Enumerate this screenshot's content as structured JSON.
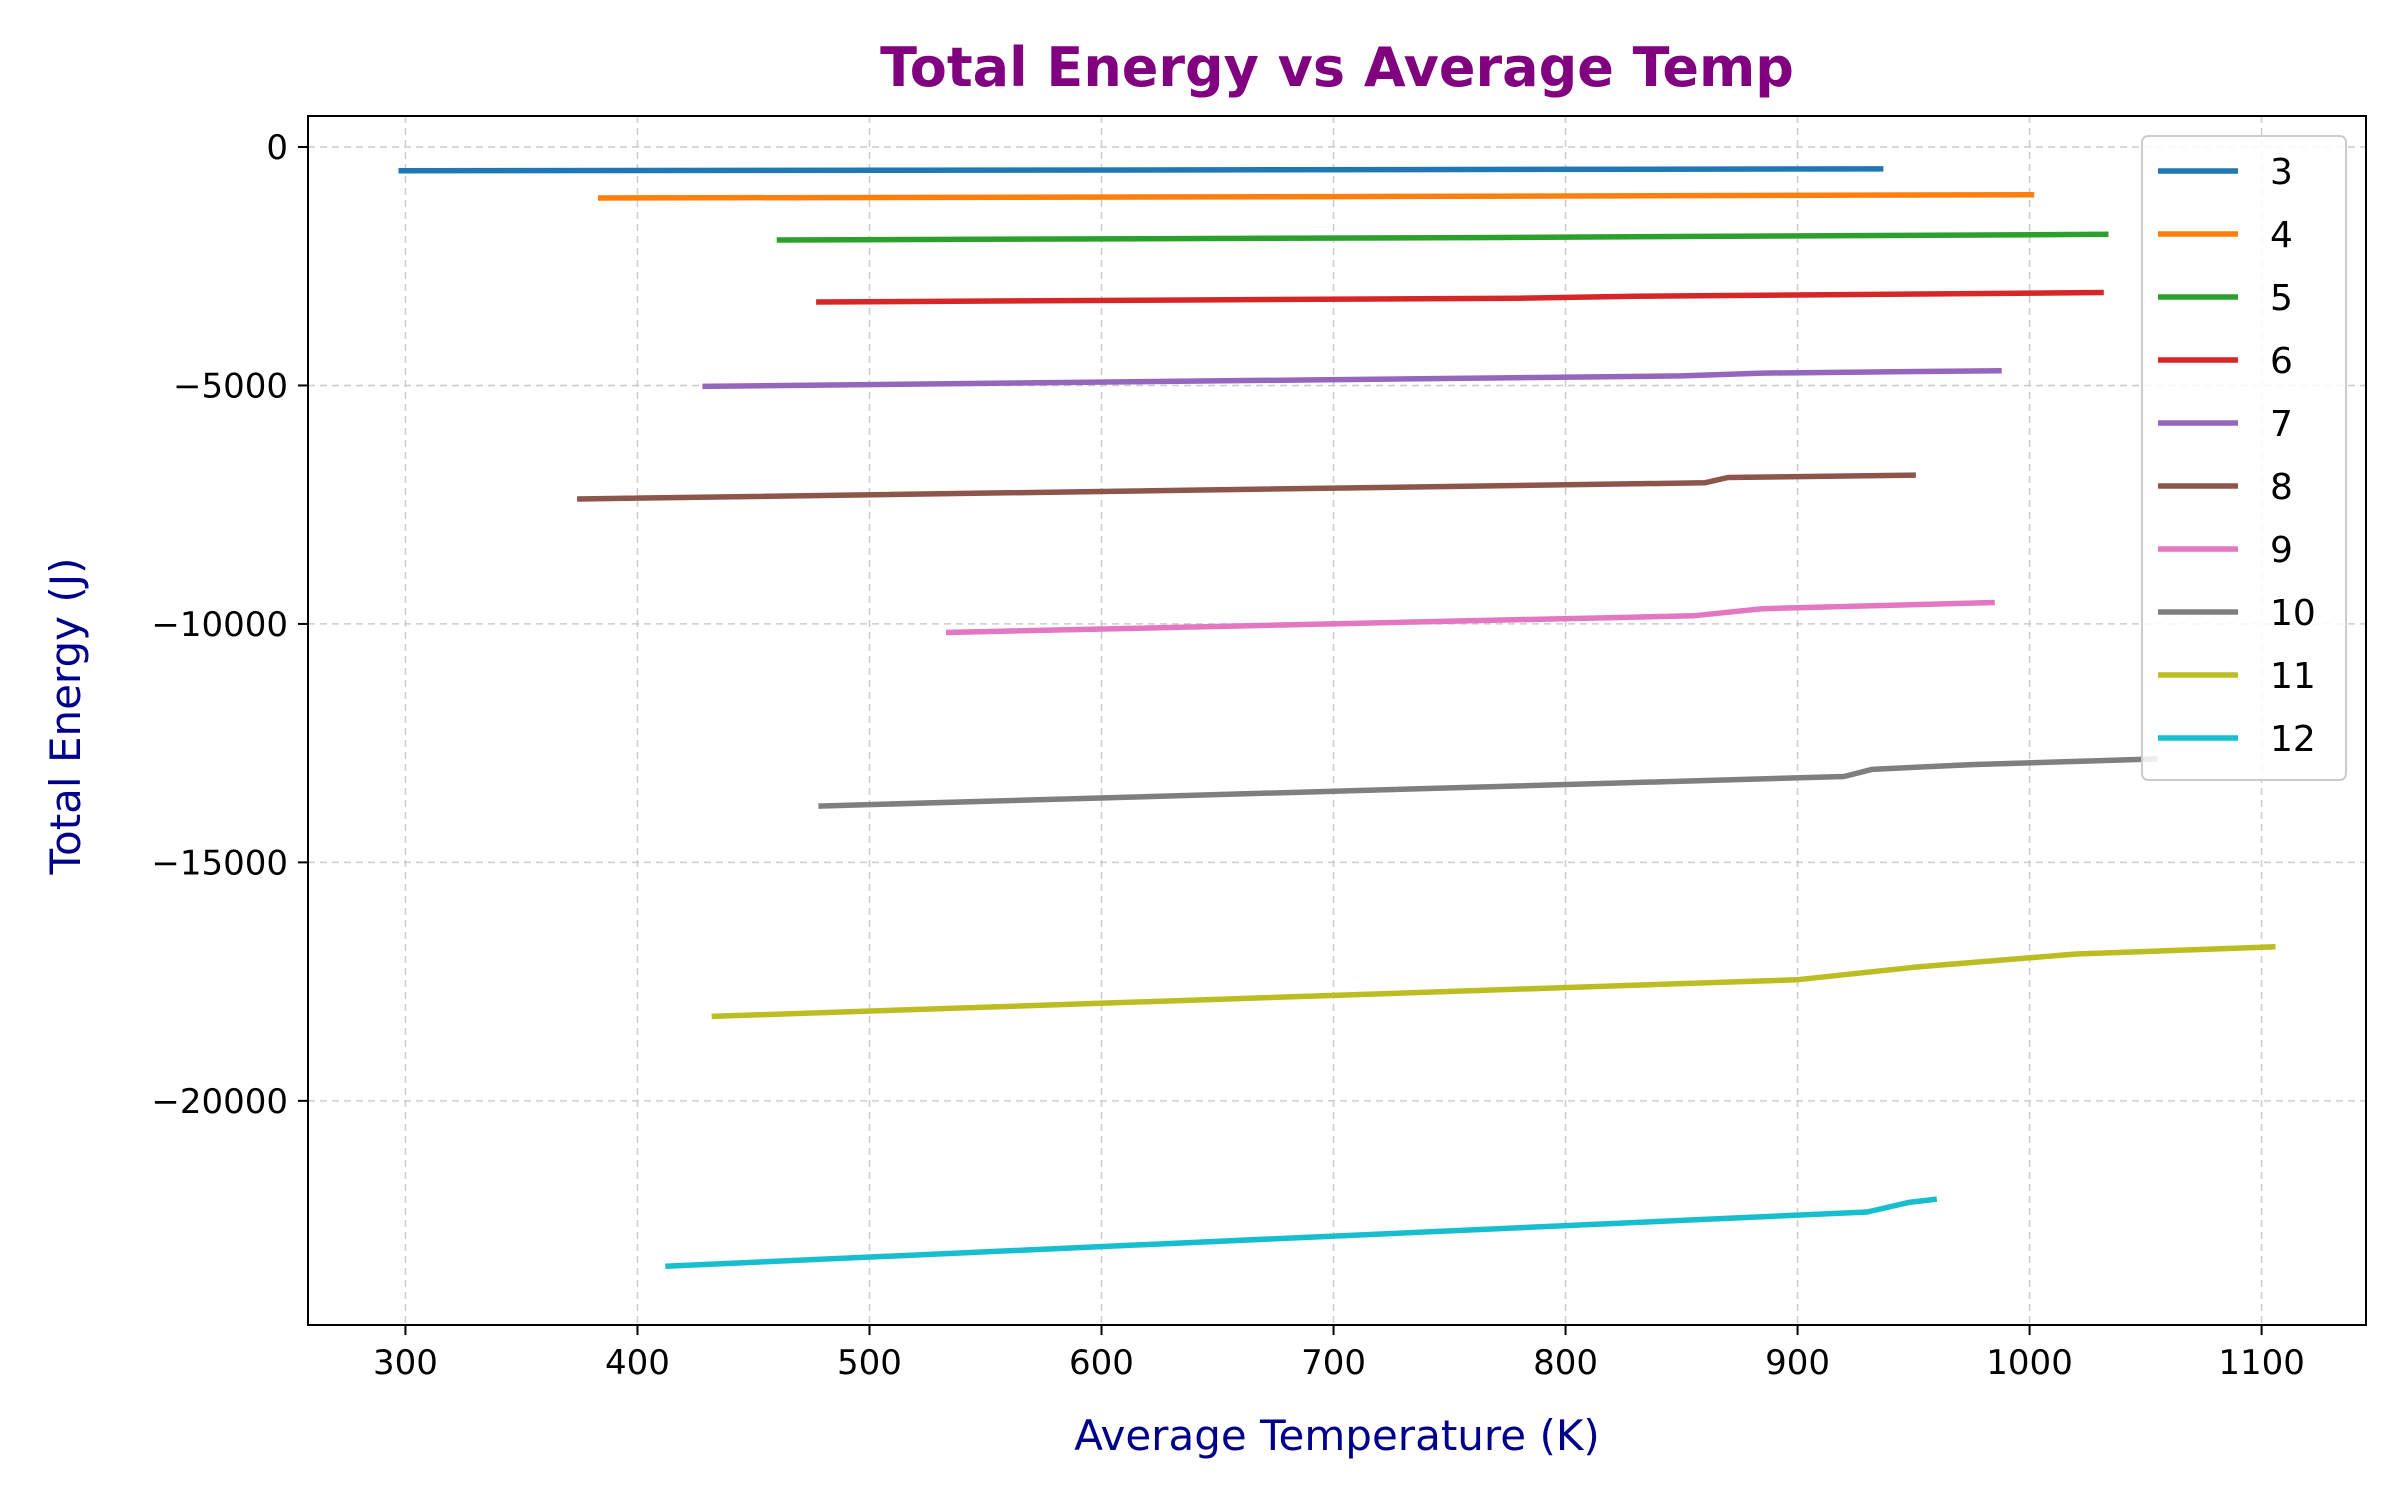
{
  "chart_data": {
    "type": "line",
    "title": "Total Energy vs Average Temp",
    "xlabel": "Average Temperature (K)",
    "ylabel": "Total Energy (J)",
    "xlim": [
      258,
      1145
    ],
    "ylim": [
      -24700,
      650
    ],
    "xticks": [
      300,
      400,
      500,
      600,
      700,
      800,
      900,
      1000,
      1100
    ],
    "xtick_labels": [
      "300",
      "400",
      "500",
      "600",
      "700",
      "800",
      "900",
      "1000",
      "1100"
    ],
    "yticks": [
      0,
      -5000,
      -10000,
      -15000,
      -20000
    ],
    "ytick_labels": [
      "0",
      "−5000",
      "−10000",
      "−15000",
      "−20000"
    ],
    "grid": true,
    "legend_position": "top-right",
    "colors": {
      "title": "#800080",
      "axis_label": "#00008B",
      "grid": "#cccccc",
      "frame": "#000000"
    },
    "series": [
      {
        "name": "3",
        "color": "#1f77b4",
        "points": [
          [
            297,
            -500
          ],
          [
            645,
            -480
          ],
          [
            937,
            -460
          ]
        ]
      },
      {
        "name": "4",
        "color": "#ff7f0e",
        "points": [
          [
            383,
            -1070
          ],
          [
            700,
            -1040
          ],
          [
            1002,
            -1000
          ]
        ]
      },
      {
        "name": "5",
        "color": "#2ca02c",
        "points": [
          [
            460,
            -1950
          ],
          [
            760,
            -1900
          ],
          [
            1034,
            -1830
          ]
        ]
      },
      {
        "name": "6",
        "color": "#d62728",
        "points": [
          [
            477,
            -3250
          ],
          [
            780,
            -3170
          ],
          [
            830,
            -3130
          ],
          [
            1032,
            -3050
          ]
        ]
      },
      {
        "name": "7",
        "color": "#9467bd",
        "points": [
          [
            428,
            -5020
          ],
          [
            850,
            -4800
          ],
          [
            885,
            -4740
          ],
          [
            988,
            -4690
          ]
        ]
      },
      {
        "name": "8",
        "color": "#8c564b",
        "points": [
          [
            374,
            -7380
          ],
          [
            860,
            -7040
          ],
          [
            870,
            -6930
          ],
          [
            951,
            -6880
          ]
        ]
      },
      {
        "name": "9",
        "color": "#e377c2",
        "points": [
          [
            533,
            -10180
          ],
          [
            855,
            -9830
          ],
          [
            885,
            -9680
          ],
          [
            985,
            -9550
          ]
        ]
      },
      {
        "name": "10",
        "color": "#7f7f7f",
        "points": [
          [
            478,
            -13820
          ],
          [
            920,
            -13200
          ],
          [
            932,
            -13050
          ],
          [
            975,
            -12950
          ],
          [
            1055,
            -12830
          ]
        ]
      },
      {
        "name": "11",
        "color": "#bcbd22",
        "points": [
          [
            432,
            -18230
          ],
          [
            900,
            -17460
          ],
          [
            950,
            -17200
          ],
          [
            1020,
            -16920
          ],
          [
            1106,
            -16770
          ]
        ]
      },
      {
        "name": "12",
        "color": "#17becf",
        "points": [
          [
            412,
            -23470
          ],
          [
            930,
            -22330
          ],
          [
            948,
            -22130
          ],
          [
            960,
            -22060
          ]
        ]
      }
    ]
  }
}
